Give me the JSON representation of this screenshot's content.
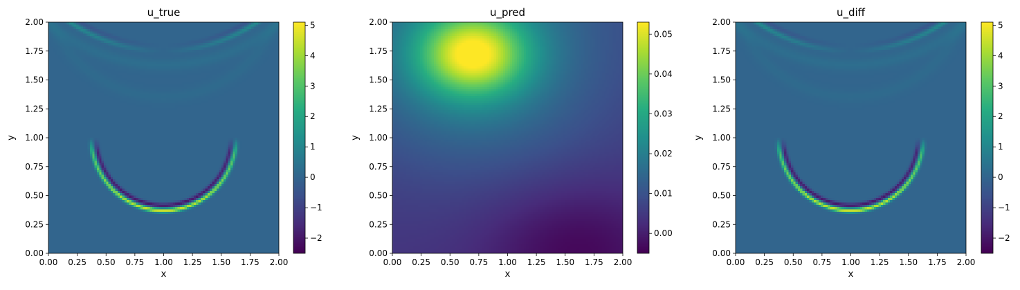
{
  "figure": {
    "background": "#ffffff"
  },
  "colormap": "viridis",
  "chart_data": [
    {
      "type": "heatmap",
      "title": "u_true",
      "xlabel": "x",
      "ylabel": "y",
      "xlim": [
        0,
        2
      ],
      "ylim": [
        0,
        2
      ],
      "x_ticks": [
        "0.00",
        "0.25",
        "0.50",
        "0.75",
        "1.00",
        "1.25",
        "1.50",
        "1.75",
        "2.00"
      ],
      "y_ticks": [
        "0.00",
        "0.25",
        "0.50",
        "0.75",
        "1.00",
        "1.25",
        "1.50",
        "1.75",
        "2.00"
      ],
      "colorbar": {
        "vmin": -2.5,
        "vmax": 5.1,
        "ticks": [
          -2,
          -1,
          0,
          1,
          2,
          3,
          4,
          5
        ],
        "tick_labels": [
          "−2",
          "−1",
          "0",
          "1",
          "2",
          "3",
          "4",
          "5"
        ]
      },
      "field": {
        "kind": "wave_ring",
        "background": 0.0,
        "ring": {
          "cx": 1.0,
          "cy": 1.0,
          "r": 0.63,
          "visible_from_y": 0.0,
          "visible_to_y": 1.0,
          "peak": 4.5,
          "trough": -2.0
        },
        "top_ring": {
          "cx": 1.0,
          "cy": 3.2,
          "r": 1.45,
          "peak": 1.3,
          "trough": -0.6
        },
        "faint_ring": {
          "cx": 1.0,
          "cy": 2.4,
          "r": 1.05,
          "amp": 0.15
        }
      }
    },
    {
      "type": "heatmap",
      "title": "u_pred",
      "xlabel": "x",
      "ylabel": "y",
      "xlim": [
        0,
        2
      ],
      "ylim": [
        0,
        2
      ],
      "x_ticks": [
        "0.00",
        "0.25",
        "0.50",
        "0.75",
        "1.00",
        "1.25",
        "1.50",
        "1.75",
        "2.00"
      ],
      "y_ticks": [
        "0.00",
        "0.25",
        "0.50",
        "0.75",
        "1.00",
        "1.25",
        "1.50",
        "1.75",
        "2.00"
      ],
      "colorbar": {
        "vmin": -0.005,
        "vmax": 0.053,
        "ticks": [
          0.0,
          0.01,
          0.02,
          0.03,
          0.04,
          0.05
        ],
        "tick_labels": [
          "0.00",
          "0.01",
          "0.02",
          "0.03",
          "0.04",
          "0.05"
        ]
      },
      "field": {
        "kind": "smooth_blob",
        "peak": {
          "x": 0.7,
          "y": 1.72,
          "value": 0.053
        },
        "trough": {
          "x": 1.6,
          "y": 0.05,
          "value": -0.005
        }
      }
    },
    {
      "type": "heatmap",
      "title": "u_diff",
      "xlabel": "x",
      "ylabel": "y",
      "xlim": [
        0,
        2
      ],
      "ylim": [
        0,
        2
      ],
      "x_ticks": [
        "0.00",
        "0.25",
        "0.50",
        "0.75",
        "1.00",
        "1.25",
        "1.50",
        "1.75",
        "2.00"
      ],
      "y_ticks": [
        "0.00",
        "0.25",
        "0.50",
        "0.75",
        "1.00",
        "1.25",
        "1.50",
        "1.75",
        "2.00"
      ],
      "colorbar": {
        "vmin": -2.5,
        "vmax": 5.1,
        "ticks": [
          -2,
          -1,
          0,
          1,
          2,
          3,
          4,
          5
        ],
        "tick_labels": [
          "−2",
          "−1",
          "0",
          "1",
          "2",
          "3",
          "4",
          "5"
        ]
      },
      "field": {
        "kind": "wave_ring",
        "background": 0.0,
        "ring": {
          "cx": 1.0,
          "cy": 1.0,
          "r": 0.63,
          "visible_from_y": 0.0,
          "visible_to_y": 1.0,
          "peak": 4.5,
          "trough": -2.0
        },
        "top_ring": {
          "cx": 1.0,
          "cy": 3.2,
          "r": 1.45,
          "peak": 1.3,
          "trough": -0.6
        },
        "faint_ring": {
          "cx": 1.0,
          "cy": 2.4,
          "r": 1.05,
          "amp": 0.15
        }
      }
    }
  ]
}
